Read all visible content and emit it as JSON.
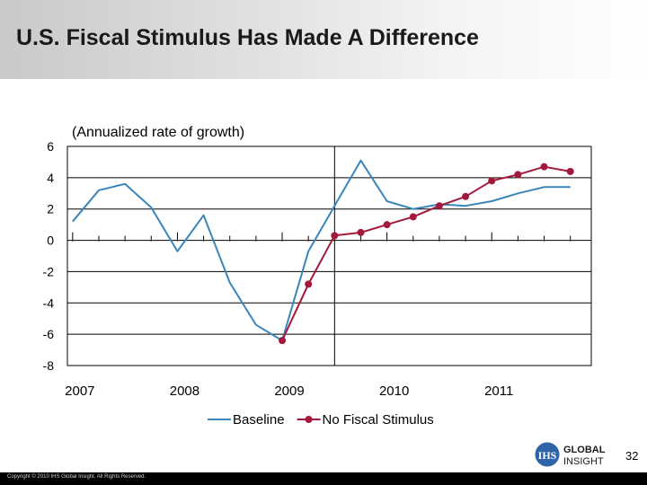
{
  "slide": {
    "title": "U.S. Fiscal Stimulus Has Made A Difference",
    "page_number": "32",
    "copyright": "Copyright © 2010 IHS Global Insight. All Rights Reserved.",
    "logo": {
      "mark": "IHS",
      "line1": "GLOBAL",
      "line2": "INSIGHT"
    },
    "colors": {
      "baseline": "#3a86b8",
      "stimulus": "#a3193c",
      "logo_blue": "#2f63a8"
    }
  },
  "chart_data": {
    "type": "line",
    "subtitle": "(Annualized rate of growth)",
    "ylim": [
      -8,
      6
    ],
    "yticks": [
      6,
      4,
      2,
      0,
      -2,
      -4,
      -6,
      -8
    ],
    "x_range": [
      2007.0,
      2011.75
    ],
    "xticks": [
      {
        "value": 2007,
        "label": "2007"
      },
      {
        "value": 2008,
        "label": "2008"
      },
      {
        "value": 2009,
        "label": "2009"
      },
      {
        "value": 2010,
        "label": "2010"
      },
      {
        "value": 2011,
        "label": "2011"
      }
    ],
    "quarter_ticks": [
      2007,
      2007.25,
      2007.5,
      2007.75,
      2008,
      2008.25,
      2008.5,
      2008.75,
      2009,
      2009.25,
      2009.5,
      2009.75,
      2010,
      2010.25,
      2010.5,
      2010.75,
      2011,
      2011.25,
      2011.5,
      2011.75
    ],
    "divider_x": 2009.5,
    "legend": "bottom-center",
    "series": [
      {
        "name": "Baseline",
        "color": "#3a86b8",
        "markers": false,
        "points": [
          [
            2007.0,
            1.2
          ],
          [
            2007.25,
            3.2
          ],
          [
            2007.5,
            3.6
          ],
          [
            2007.75,
            2.1
          ],
          [
            2008.0,
            -0.7
          ],
          [
            2008.25,
            1.6
          ],
          [
            2008.5,
            -2.7
          ],
          [
            2008.75,
            -5.4
          ],
          [
            2009.0,
            -6.4
          ],
          [
            2009.25,
            -0.7
          ],
          [
            2009.5,
            2.2
          ],
          [
            2009.75,
            5.1
          ],
          [
            2010.0,
            2.5
          ],
          [
            2010.25,
            2.0
          ],
          [
            2010.5,
            2.3
          ],
          [
            2010.75,
            2.2
          ],
          [
            2011.0,
            2.5
          ],
          [
            2011.25,
            3.0
          ],
          [
            2011.5,
            3.4
          ],
          [
            2011.75,
            3.4
          ]
        ]
      },
      {
        "name": "No Fiscal Stimulus",
        "color": "#a3193c",
        "markers": true,
        "points": [
          [
            2009.0,
            -6.4
          ],
          [
            2009.25,
            -2.8
          ],
          [
            2009.5,
            0.3
          ],
          [
            2009.75,
            0.5
          ],
          [
            2010.0,
            1.0
          ],
          [
            2010.25,
            1.5
          ],
          [
            2010.5,
            2.2
          ],
          [
            2010.75,
            2.8
          ],
          [
            2011.0,
            3.8
          ],
          [
            2011.25,
            4.2
          ],
          [
            2011.5,
            4.7
          ],
          [
            2011.75,
            4.4
          ]
        ]
      }
    ]
  }
}
